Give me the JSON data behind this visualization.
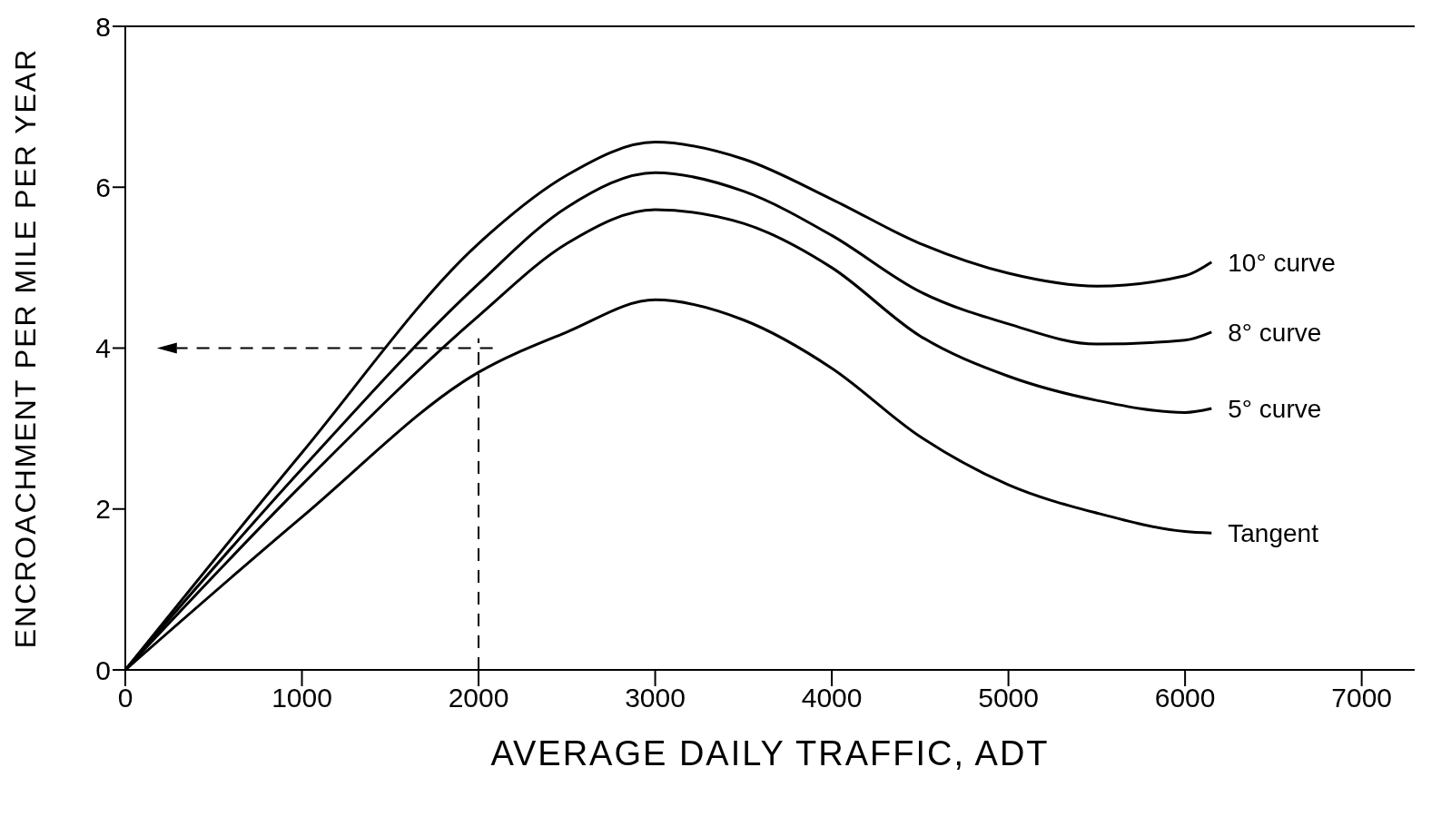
{
  "chart_data": {
    "type": "line",
    "xlabel": "AVERAGE DAILY TRAFFIC, ADT",
    "ylabel": "ENCROACHMENT PER MILE PER YEAR",
    "xlim": [
      0,
      7300
    ],
    "ylim": [
      0,
      8
    ],
    "xticks": [
      0,
      1000,
      2000,
      3000,
      4000,
      5000,
      6000,
      7000
    ],
    "yticks": [
      0,
      2,
      4,
      6,
      8
    ],
    "marker": "none",
    "line_style": "solid",
    "x": [
      0,
      1000,
      2000,
      2500,
      3000,
      3500,
      4000,
      4500,
      5000,
      5500,
      6000,
      6150
    ],
    "series": [
      {
        "name": "10° curve",
        "color": "#000000",
        "values": [
          0,
          2.7,
          5.3,
          6.15,
          6.56,
          6.35,
          5.85,
          5.3,
          4.93,
          4.77,
          4.9,
          5.07
        ]
      },
      {
        "name": "8° curve",
        "color": "#000000",
        "values": [
          0,
          2.5,
          4.8,
          5.75,
          6.18,
          5.95,
          5.4,
          4.7,
          4.3,
          4.05,
          4.1,
          4.2
        ]
      },
      {
        "name": "5° curve",
        "color": "#000000",
        "values": [
          0,
          2.3,
          4.4,
          5.3,
          5.72,
          5.55,
          5.0,
          4.15,
          3.65,
          3.35,
          3.2,
          3.25
        ]
      },
      {
        "name": "Tangent",
        "color": "#000000",
        "values": [
          0,
          1.9,
          3.7,
          4.2,
          4.6,
          4.35,
          3.75,
          2.9,
          2.3,
          1.95,
          1.72,
          1.7
        ]
      }
    ],
    "ref_lines": [
      {
        "axis": "x",
        "value": 2000,
        "line_style": "dashed",
        "color": "#000000"
      },
      {
        "axis": "y",
        "value": 4,
        "line_style": "dashed",
        "color": "#000000"
      }
    ]
  }
}
